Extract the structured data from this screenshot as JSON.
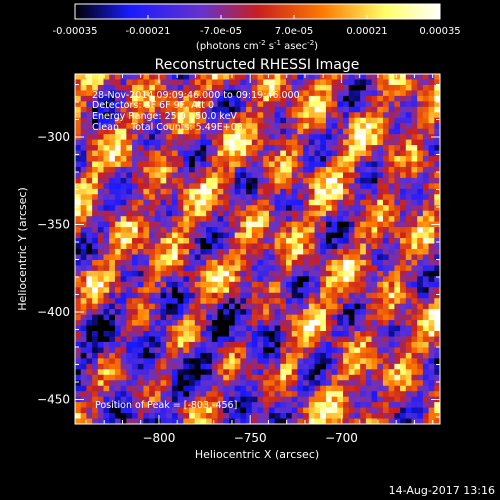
{
  "colorbar": {
    "ticks": [
      "-0.00035",
      "-0.00021",
      "-7.0e-05",
      "7.0e-05",
      "0.00021",
      "0.00035"
    ],
    "tick_values": [
      -0.00035,
      -0.00021,
      -7e-05,
      7e-05,
      0.00021,
      0.00035
    ],
    "range": [
      -0.00035,
      0.00035
    ],
    "units": {
      "base": "(photons cm",
      "sup1": "-2",
      "mid1": " s",
      "sup2": "-1",
      "mid2": " asec",
      "sup3": "-2",
      "end": ")"
    },
    "colormap": [
      "#000000",
      "#1a1aff",
      "#6633cc",
      "#c81e1e",
      "#ff7a00",
      "#ffff66",
      "#ffffff"
    ]
  },
  "chart_data": {
    "type": "heatmap",
    "title": "Reconstructed RHESSI Image",
    "xlabel": "Heliocentric X (arcsec)",
    "ylabel": "Heliocentric Y (arcsec)",
    "xlim": [
      -846,
      -646
    ],
    "ylim": [
      -464,
      -264
    ],
    "xticks": [
      -800,
      -750,
      -700
    ],
    "yticks": [
      -300,
      -350,
      -400,
      -450
    ],
    "annotations": [
      "28-Nov-2014 09:09:46.000 to 09:19:46.000",
      "Detectors: 3F 6F 9F, Att 0",
      "Energy Range: 25.0 - 50.0 keV",
      "Clean    Total Counts: 5.49E+03"
    ],
    "peak_label": "Position of Peak = [-803,-456]",
    "peak": [
      -803,
      -456
    ]
  },
  "footer": {
    "timestamp": "14-Aug-2017 13:16"
  }
}
